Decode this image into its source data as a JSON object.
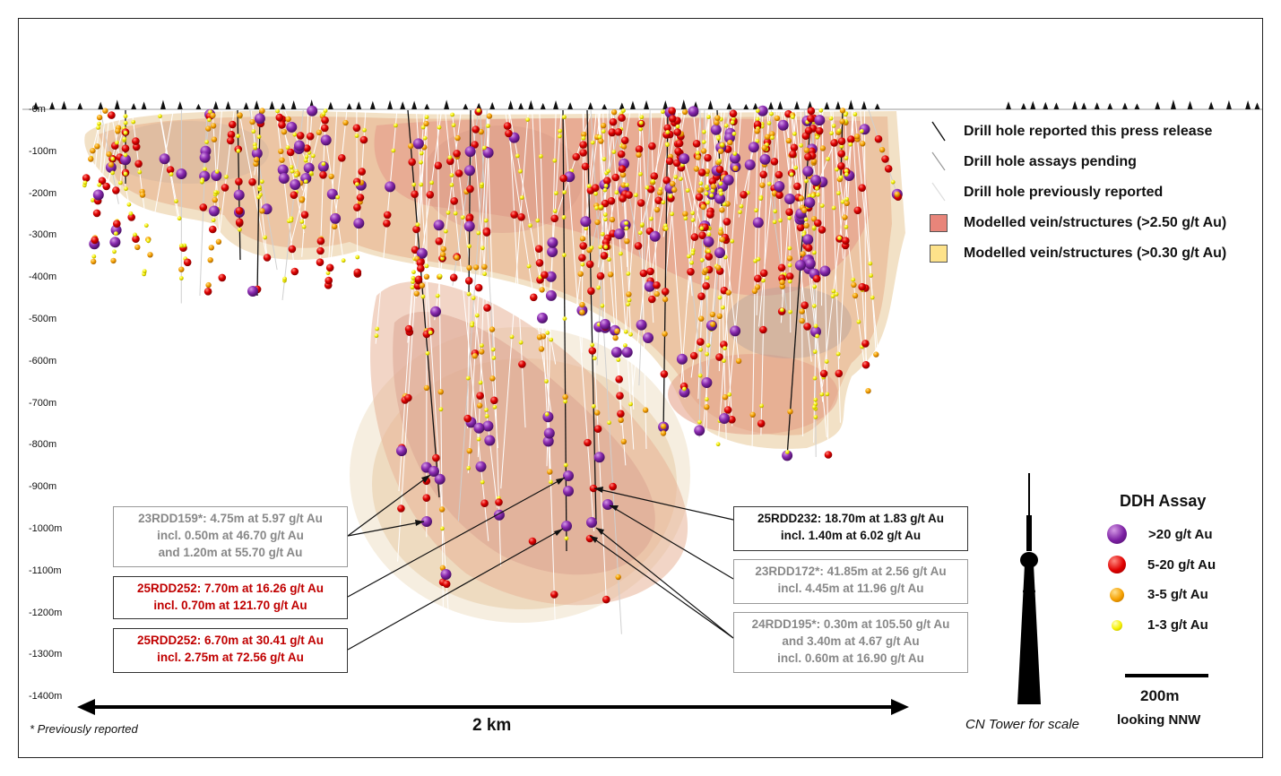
{
  "depth_labels": [
    "-0m",
    "-100m",
    "-200m",
    "-300m",
    "-400m",
    "-500m",
    "-600m",
    "-700m",
    "-800m",
    "-900m",
    "-1000m",
    "-1100m",
    "-1200m",
    "-1300m",
    "-1400m"
  ],
  "legend": {
    "items": [
      {
        "label": "Drill hole reported this press release",
        "symbol": "black-line"
      },
      {
        "label": "Drill hole assays pending",
        "symbol": "grey-line"
      },
      {
        "label": "Drill hole previously reported",
        "symbol": "light-line"
      },
      {
        "label": "Modelled vein/structures (>2.50 g/t Au)",
        "symbol": "red-swatch",
        "color": "#e8857a"
      },
      {
        "label": "Modelled vein/structures (>0.30 g/t Au)",
        "symbol": "yellow-swatch",
        "color": "#fde28a"
      }
    ]
  },
  "assay_legend": {
    "title": "DDH Assay",
    "items": [
      {
        "label": ">20 g/t Au",
        "color": "#7b1fa2"
      },
      {
        "label": "5-20 g/t Au",
        "color": "#e00000"
      },
      {
        "label": "3-5 g/t Au",
        "color": "#f5a000"
      },
      {
        "label": "1-3 g/t Au",
        "color": "#f5f000"
      }
    ]
  },
  "callouts": {
    "c1": {
      "l1": "23RDD159*: 4.75m at 5.97 g/t Au",
      "l2": "incl. 0.50m at 46.70 g/t Au",
      "l3": "and 1.20m at 55.70 g/t Au"
    },
    "c2": {
      "l1": "25RDD252: 7.70m at 16.26 g/t Au",
      "l2": "incl. 0.70m at 121.70 g/t Au"
    },
    "c3": {
      "l1": "25RDD252: 6.70m at 30.41 g/t Au",
      "l2": "incl. 2.75m at 72.56 g/t Au"
    },
    "c4": {
      "l1": "25RDD232: 18.70m at 1.83 g/t Au",
      "l2": "incl. 1.40m at 6.02 g/t Au"
    },
    "c5": {
      "l1": "23RDD172*: 41.85m at 2.56 g/t Au",
      "l2": "incl. 4.45m at 11.96 g/t Au"
    },
    "c6": {
      "l1": "24RDD195*: 0.30m at 105.50 g/t Au",
      "l2": "and 3.40m at 4.67 g/t Au",
      "l3": "incl. 0.60m at 16.90 g/t Au"
    }
  },
  "footer": {
    "note": "* Previously reported",
    "scale_2km": "2 km",
    "tower_caption": "CN Tower for scale",
    "scale_200m": "200m",
    "orientation": "looking NNW"
  },
  "colors": {
    "purple": "#7b1fa2",
    "red": "#e00000",
    "orange": "#f5a000",
    "yellow": "#f5f000",
    "body_tan": "#e9d3b0",
    "body_red": "#e2937a"
  }
}
